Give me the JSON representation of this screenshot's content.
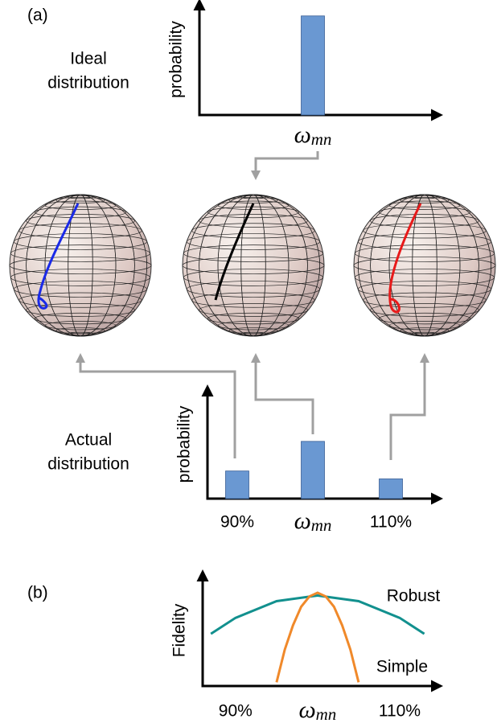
{
  "panel_labels": [
    "(a)",
    "(b)"
  ],
  "chart_data": [
    {
      "type": "bar",
      "side_label": [
        "Ideal",
        "distribution"
      ],
      "ylabel": "probability",
      "categories": [
        {
          "symbol": "ω",
          "subscript": "mn"
        }
      ],
      "values": [
        1
      ],
      "color": "#6a98d2",
      "ylim": [
        0,
        1.12
      ]
    },
    {
      "type": "bar",
      "side_label": [
        "Actual",
        "distribution"
      ],
      "ylabel": "probability",
      "categories": [
        "90%",
        {
          "symbol": "ω",
          "subscript": "mn"
        },
        "110%"
      ],
      "values": [
        0.28,
        0.58,
        0.2
      ],
      "color": "#6a98d2",
      "ylim": [
        0,
        1.1
      ]
    },
    {
      "type": "line",
      "ylabel": "Fidelity",
      "xlim": [
        86,
        115
      ],
      "ylim": [
        0,
        1.19
      ],
      "xticks": [
        {
          "value": 90,
          "label": "90%"
        },
        {
          "value": 100,
          "label": {
            "symbol": "ω",
            "subscript": "mn"
          }
        },
        {
          "value": 110,
          "label": "110%"
        }
      ],
      "series": [
        {
          "name": "Robust",
          "color": "#12908e",
          "x": [
            87,
            90,
            95,
            100,
            105,
            110,
            113
          ],
          "values": [
            0.56,
            0.73,
            0.91,
            0.97,
            0.91,
            0.73,
            0.56
          ]
        },
        {
          "name": "Simple",
          "color": "#f0892a",
          "x": [
            95,
            96,
            97,
            98,
            99,
            100,
            101,
            102,
            103,
            104,
            105
          ],
          "values": [
            0.04,
            0.39,
            0.65,
            0.85,
            0.96,
            1,
            0.96,
            0.85,
            0.65,
            0.39,
            0.04
          ]
        }
      ]
    }
  ]
}
